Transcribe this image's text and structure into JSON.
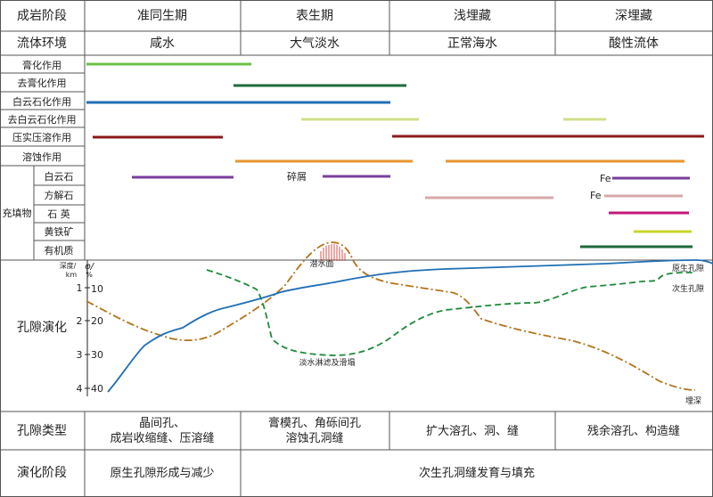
{
  "header": {
    "stage_label": "成岩阶段",
    "fluid_label": "流体环境",
    "stages": [
      "准同生期",
      "表生期",
      "浅埋藏",
      "深埋藏"
    ],
    "fluids": [
      "咸水",
      "大气淡水",
      "正常海水",
      "酸性流体"
    ]
  },
  "processes": [
    {
      "label": "膏化作用",
      "color": "#6cbf45"
    },
    {
      "label": "去膏化作用",
      "color": "#1e6b3a"
    },
    {
      "label": "白云石化作用",
      "color": "#1f6fb5"
    },
    {
      "label": "去白云石化作用",
      "color": "#cfe08a"
    },
    {
      "label": "压实压溶作用",
      "color": "#8b1a1a"
    },
    {
      "label": "溶蚀作用",
      "color": "#e8962e"
    }
  ],
  "fill_group_label": "充填物",
  "fills": [
    {
      "label": "白云石",
      "color": "#7a3f9c"
    },
    {
      "label": "方解石",
      "color": "#d9a8a8"
    },
    {
      "label": "石 英",
      "color": "#c2187a"
    },
    {
      "label": "黄铁矿",
      "color": "#c8d62a"
    },
    {
      "label": "有机质",
      "color": "#1e6b3a"
    }
  ],
  "fill_annotations": {
    "debris": "碎屑",
    "fe1": "Fe",
    "fe2": "Fe"
  },
  "porosity": {
    "title": "孔隙演化",
    "depth_unit_label": "深度/",
    "depth_unit": "km",
    "phi_symbol": "φ/",
    "phi_unit": "%",
    "depth_ticks": [
      "1",
      "2",
      "3",
      "4"
    ],
    "phi_ticks": [
      "10",
      "20",
      "30",
      "40"
    ],
    "labels": {
      "diving": "潜水面",
      "primary": "原生孔隙",
      "secondary": "次生孔隙",
      "collapse": "淡水淋滤及滑塌",
      "burial": "埋深"
    },
    "colors": {
      "primary": "#1f6fb5",
      "secondary": "#1e8a3a",
      "burial": "#b5731a",
      "diving": "#d9534f"
    }
  },
  "pore_types": {
    "label": "孔隙类型",
    "cells": [
      [
        "晶间孔、",
        "成岩收缩缝、压溶缝"
      ],
      [
        "膏模孔、角砾间孔",
        "溶蚀孔洞缝"
      ],
      [
        "扩大溶孔、洞、缝"
      ],
      [
        "残余溶孔、构造缝"
      ]
    ]
  },
  "evolution_stage": {
    "label": "演化阶段",
    "early": "原生孔隙形成与减少",
    "late": "次生孔洞缝发育与填充"
  }
}
